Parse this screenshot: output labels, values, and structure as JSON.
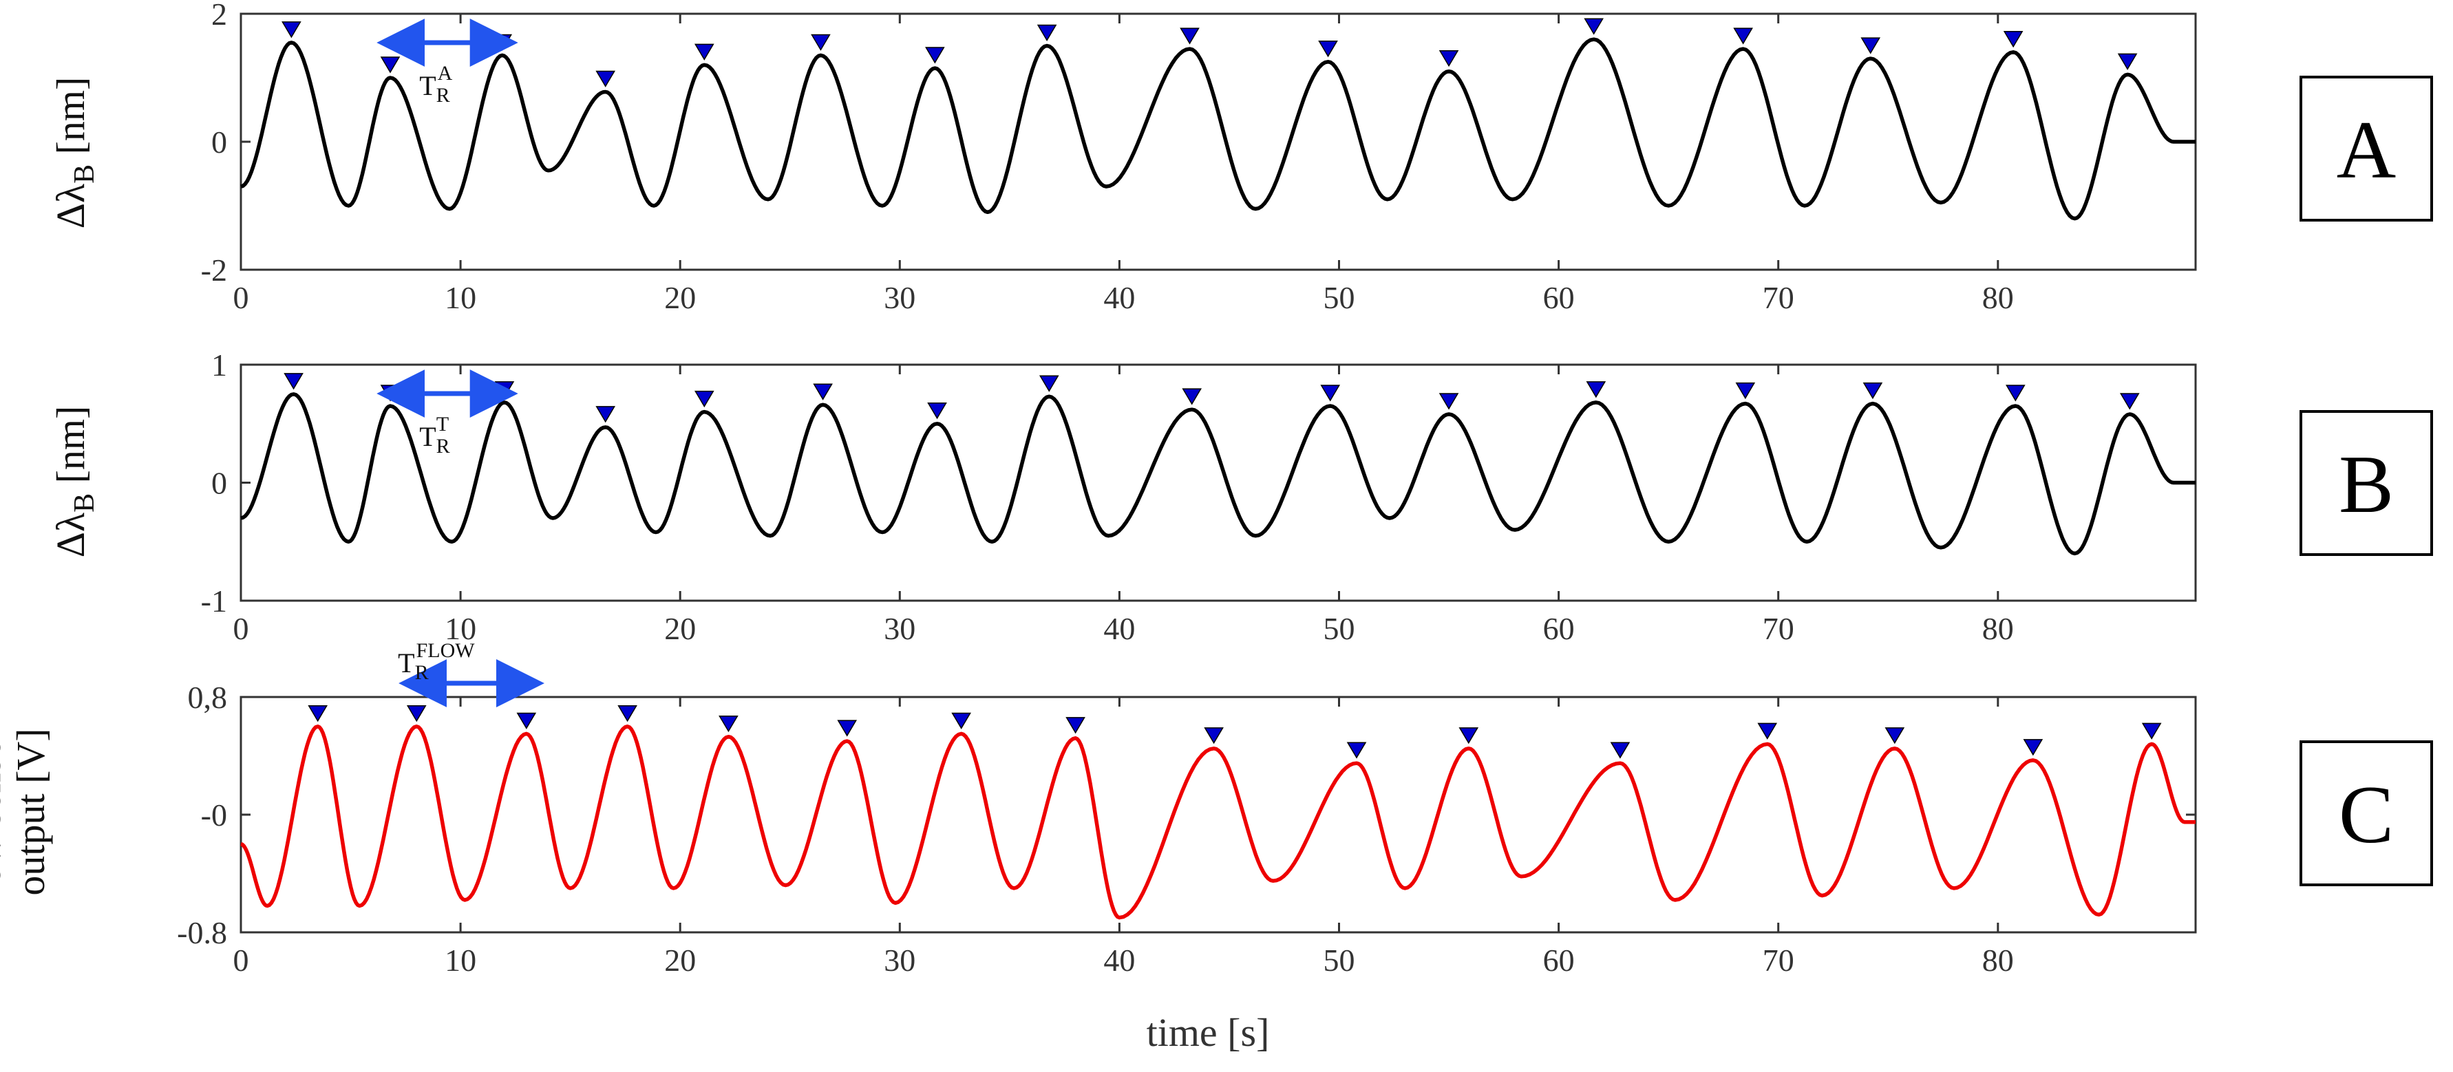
{
  "chart_data": [
    {
      "type": "line",
      "panel_label": "A",
      "ylabel": "Δλ_B [nm]",
      "ylabel_parts": [
        "Δλ",
        "B",
        " [nm]"
      ],
      "xlim": [
        0,
        89
      ],
      "ylim": [
        -2,
        2
      ],
      "xticks": [
        "0",
        "10",
        "20",
        "30",
        "40",
        "50",
        "60",
        "70",
        "80"
      ],
      "yticks": [
        "-2",
        "0",
        "2"
      ],
      "grid": false,
      "line_color": "#000000",
      "marker_color": "#0000cc",
      "annotation": {
        "base": "T",
        "sub": "R",
        "sup": "A",
        "x_from": 6.4,
        "x_to": 12.4
      },
      "peaks": [
        {
          "x": 2.3,
          "y": 1.55
        },
        {
          "x": 6.8,
          "y": 1.0
        },
        {
          "x": 11.9,
          "y": 1.35
        },
        {
          "x": 16.6,
          "y": 0.78
        },
        {
          "x": 21.1,
          "y": 1.2
        },
        {
          "x": 26.4,
          "y": 1.35
        },
        {
          "x": 31.6,
          "y": 1.15
        },
        {
          "x": 36.7,
          "y": 1.5
        },
        {
          "x": 43.2,
          "y": 1.45
        },
        {
          "x": 49.5,
          "y": 1.25
        },
        {
          "x": 55.0,
          "y": 1.1
        },
        {
          "x": 61.6,
          "y": 1.6
        },
        {
          "x": 68.4,
          "y": 1.45
        },
        {
          "x": 74.2,
          "y": 1.3
        },
        {
          "x": 80.7,
          "y": 1.4
        },
        {
          "x": 85.9,
          "y": 1.05
        }
      ],
      "troughs": [
        {
          "x": 0.0,
          "y": -0.7
        },
        {
          "x": 4.9,
          "y": -1.0
        },
        {
          "x": 9.5,
          "y": -1.05
        },
        {
          "x": 14.0,
          "y": -0.45
        },
        {
          "x": 18.8,
          "y": -1.0
        },
        {
          "x": 24.0,
          "y": -0.9
        },
        {
          "x": 29.2,
          "y": -1.0
        },
        {
          "x": 34.0,
          "y": -1.1
        },
        {
          "x": 39.4,
          "y": -0.7
        },
        {
          "x": 46.2,
          "y": -1.05
        },
        {
          "x": 52.2,
          "y": -0.9
        },
        {
          "x": 57.9,
          "y": -0.9
        },
        {
          "x": 65.0,
          "y": -1.0
        },
        {
          "x": 71.2,
          "y": -1.0
        },
        {
          "x": 77.4,
          "y": -0.95
        },
        {
          "x": 83.5,
          "y": -1.2
        },
        {
          "x": 88.0,
          "y": 0.0
        },
        {
          "x": 89.0,
          "y": 0.0
        }
      ]
    },
    {
      "type": "line",
      "panel_label": "B",
      "ylabel": "Δλ_B [nm]",
      "ylabel_parts": [
        "Δλ",
        "B",
        " [nm]"
      ],
      "xlim": [
        0,
        89
      ],
      "ylim": [
        -1,
        1
      ],
      "xticks": [
        "0",
        "10",
        "20",
        "30",
        "40",
        "50",
        "60",
        "70",
        "80"
      ],
      "yticks": [
        "-1",
        "0",
        "1"
      ],
      "grid": false,
      "line_color": "#000000",
      "marker_color": "#0000cc",
      "annotation": {
        "base": "T",
        "sub": "R",
        "sup": "T",
        "x_from": 6.4,
        "x_to": 12.4
      },
      "peaks": [
        {
          "x": 2.4,
          "y": 0.75
        },
        {
          "x": 6.8,
          "y": 0.65
        },
        {
          "x": 12.0,
          "y": 0.68
        },
        {
          "x": 16.6,
          "y": 0.47
        },
        {
          "x": 21.1,
          "y": 0.6
        },
        {
          "x": 26.5,
          "y": 0.66
        },
        {
          "x": 31.7,
          "y": 0.5
        },
        {
          "x": 36.8,
          "y": 0.73
        },
        {
          "x": 43.3,
          "y": 0.62
        },
        {
          "x": 49.6,
          "y": 0.65
        },
        {
          "x": 55.0,
          "y": 0.58
        },
        {
          "x": 61.7,
          "y": 0.68
        },
        {
          "x": 68.5,
          "y": 0.67
        },
        {
          "x": 74.3,
          "y": 0.67
        },
        {
          "x": 80.8,
          "y": 0.65
        },
        {
          "x": 86.0,
          "y": 0.58
        }
      ],
      "troughs": [
        {
          "x": 0.0,
          "y": -0.3
        },
        {
          "x": 4.9,
          "y": -0.5
        },
        {
          "x": 9.6,
          "y": -0.5
        },
        {
          "x": 14.2,
          "y": -0.3
        },
        {
          "x": 18.9,
          "y": -0.42
        },
        {
          "x": 24.1,
          "y": -0.45
        },
        {
          "x": 29.2,
          "y": -0.42
        },
        {
          "x": 34.2,
          "y": -0.5
        },
        {
          "x": 39.5,
          "y": -0.45
        },
        {
          "x": 46.2,
          "y": -0.45
        },
        {
          "x": 52.3,
          "y": -0.3
        },
        {
          "x": 58.0,
          "y": -0.4
        },
        {
          "x": 65.0,
          "y": -0.5
        },
        {
          "x": 71.3,
          "y": -0.5
        },
        {
          "x": 77.4,
          "y": -0.55
        },
        {
          "x": 83.5,
          "y": -0.6
        },
        {
          "x": 88.0,
          "y": 0.0
        },
        {
          "x": 89.0,
          "y": 0.0
        }
      ]
    },
    {
      "type": "line",
      "panel_label": "C",
      "ylabel": "flow sensor output [V]",
      "ylabel_lines": [
        "flow sensor",
        "output [V]"
      ],
      "xlabel": "time [s]",
      "xlim": [
        0,
        89
      ],
      "ylim": [
        -0.8,
        0.8
      ],
      "xticks": [
        "0",
        "10",
        "20",
        "30",
        "40",
        "50",
        "60",
        "70",
        "80"
      ],
      "yticks": [
        "-0.8",
        "-0",
        "0,8"
      ],
      "grid": false,
      "line_color": "#ee0000",
      "marker_color": "#0000cc",
      "annotation": {
        "base": "T",
        "sub": "R",
        "sup": "FLOW",
        "x_from": 7.4,
        "x_to": 13.6
      },
      "peaks": [
        {
          "x": 3.5,
          "y": 0.6
        },
        {
          "x": 8.0,
          "y": 0.6
        },
        {
          "x": 13.0,
          "y": 0.55
        },
        {
          "x": 17.6,
          "y": 0.6
        },
        {
          "x": 22.2,
          "y": 0.53
        },
        {
          "x": 27.6,
          "y": 0.5
        },
        {
          "x": 32.8,
          "y": 0.55
        },
        {
          "x": 38.0,
          "y": 0.52
        },
        {
          "x": 44.3,
          "y": 0.45
        },
        {
          "x": 50.8,
          "y": 0.35
        },
        {
          "x": 55.9,
          "y": 0.45
        },
        {
          "x": 62.8,
          "y": 0.35
        },
        {
          "x": 69.5,
          "y": 0.48
        },
        {
          "x": 75.3,
          "y": 0.45
        },
        {
          "x": 81.6,
          "y": 0.37
        },
        {
          "x": 87.0,
          "y": 0.48
        }
      ],
      "troughs": [
        {
          "x": 0.0,
          "y": -0.2
        },
        {
          "x": 1.2,
          "y": -0.62
        },
        {
          "x": 5.4,
          "y": -0.62
        },
        {
          "x": 10.2,
          "y": -0.58
        },
        {
          "x": 15.0,
          "y": -0.5
        },
        {
          "x": 19.7,
          "y": -0.5
        },
        {
          "x": 24.8,
          "y": -0.48
        },
        {
          "x": 29.8,
          "y": -0.6
        },
        {
          "x": 35.2,
          "y": -0.5
        },
        {
          "x": 40.0,
          "y": -0.7
        },
        {
          "x": 47.0,
          "y": -0.45
        },
        {
          "x": 53.0,
          "y": -0.5
        },
        {
          "x": 58.3,
          "y": -0.42
        },
        {
          "x": 65.3,
          "y": -0.58
        },
        {
          "x": 72.0,
          "y": -0.55
        },
        {
          "x": 78.0,
          "y": -0.5
        },
        {
          "x": 84.6,
          "y": -0.68
        },
        {
          "x": 88.5,
          "y": -0.05
        },
        {
          "x": 89.0,
          "y": -0.05
        }
      ]
    }
  ]
}
